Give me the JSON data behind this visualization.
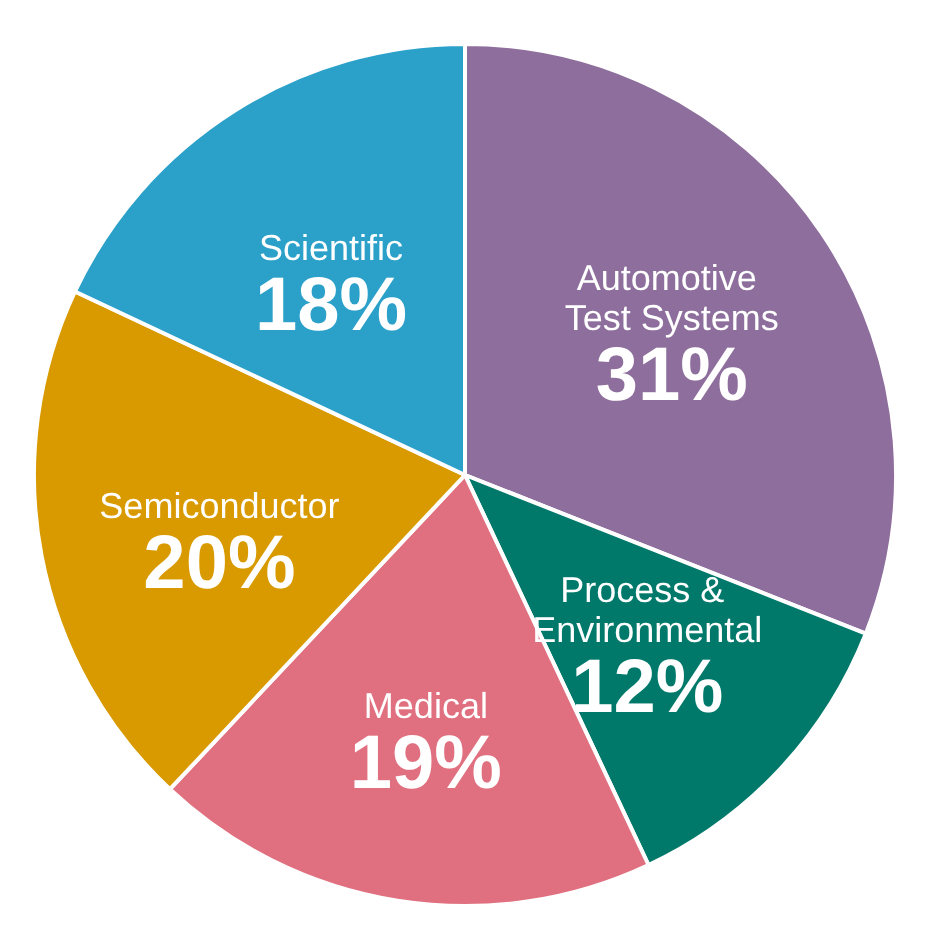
{
  "chart_data": {
    "type": "pie",
    "categories": [
      "Automotive Test Systems",
      "Process & Environmental",
      "Medical",
      "Semiconductor",
      "Scientific"
    ],
    "values": [
      31,
      12,
      19,
      20,
      18
    ],
    "colors": [
      "#8e6e9c",
      "#00796b",
      "#e0707f",
      "#d99a00",
      "#2ba1c9"
    ],
    "value_labels": [
      "31%",
      "12%",
      "19%",
      "20%",
      "18%"
    ],
    "legend": false
  }
}
